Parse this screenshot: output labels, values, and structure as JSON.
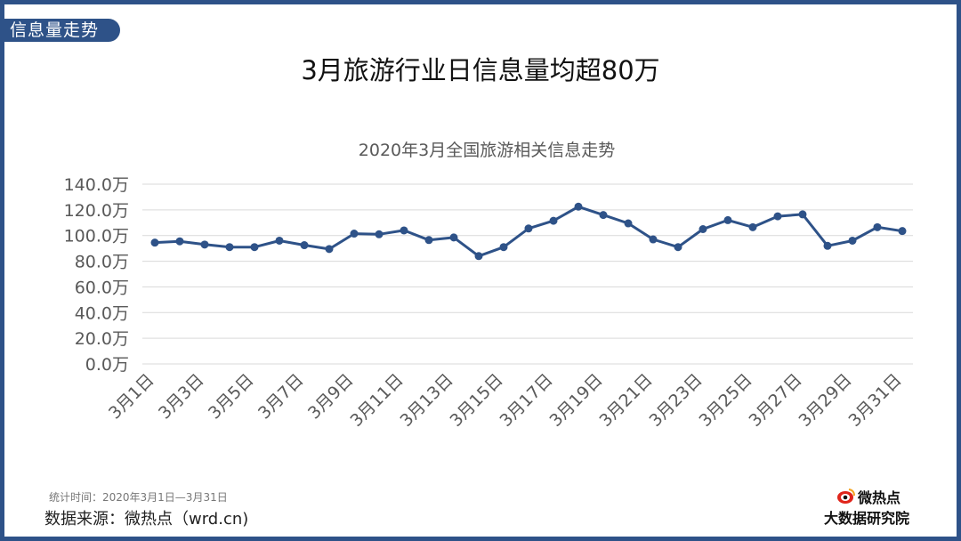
{
  "header": {
    "section_tag": "信息量走势",
    "title": "3月旅游行业日信息量均超80万"
  },
  "chart_data": {
    "type": "line",
    "title": "2020年3月全国旅游相关信息走势",
    "categories": [
      "3月1日",
      "3月2日",
      "3月3日",
      "3月4日",
      "3月5日",
      "3月6日",
      "3月7日",
      "3月8日",
      "3月9日",
      "3月10日",
      "3月11日",
      "3月12日",
      "3月13日",
      "3月14日",
      "3月15日",
      "3月16日",
      "3月17日",
      "3月18日",
      "3月19日",
      "3月20日",
      "3月21日",
      "3月22日",
      "3月23日",
      "3月24日",
      "3月25日",
      "3月26日",
      "3月27日",
      "3月28日",
      "3月29日",
      "3月30日",
      "3月31日"
    ],
    "x_tick_labels": [
      "3月1日",
      "3月3日",
      "3月5日",
      "3月7日",
      "3月9日",
      "3月11日",
      "3月13日",
      "3月15日",
      "3月17日",
      "3月19日",
      "3月21日",
      "3月23日",
      "3月25日",
      "3月27日",
      "3月29日",
      "3月31日"
    ],
    "series": [
      {
        "values": [
          94.5,
          95.5,
          93,
          91,
          91,
          96,
          92.5,
          89.5,
          101.5,
          101,
          104,
          96.5,
          98.5,
          84,
          91,
          105.5,
          111.5,
          122.5,
          116,
          109.5,
          97,
          91,
          105,
          112,
          106.5,
          115,
          116.5,
          92,
          96,
          106.5,
          103.5
        ]
      }
    ],
    "ylim": [
      0,
      140
    ],
    "y_ticks": [
      0,
      20,
      40,
      60,
      80,
      100,
      120,
      140
    ],
    "y_tick_labels": [
      "0.0万",
      "20.0万",
      "40.0万",
      "60.0万",
      "80.0万",
      "100.0万",
      "120.0万",
      "140.0万"
    ],
    "grid": true,
    "colors": {
      "line": "#2e5288",
      "grid": "#d9d9d9",
      "text": "#595959"
    }
  },
  "footer": {
    "note": "统计时间：2020年3月1日—3月31日",
    "source": "数据来源：微热点（wrd.cn)"
  },
  "brand": {
    "name": "微热点",
    "sub": "大数据研究院",
    "icon": "weibo-eye-icon"
  }
}
